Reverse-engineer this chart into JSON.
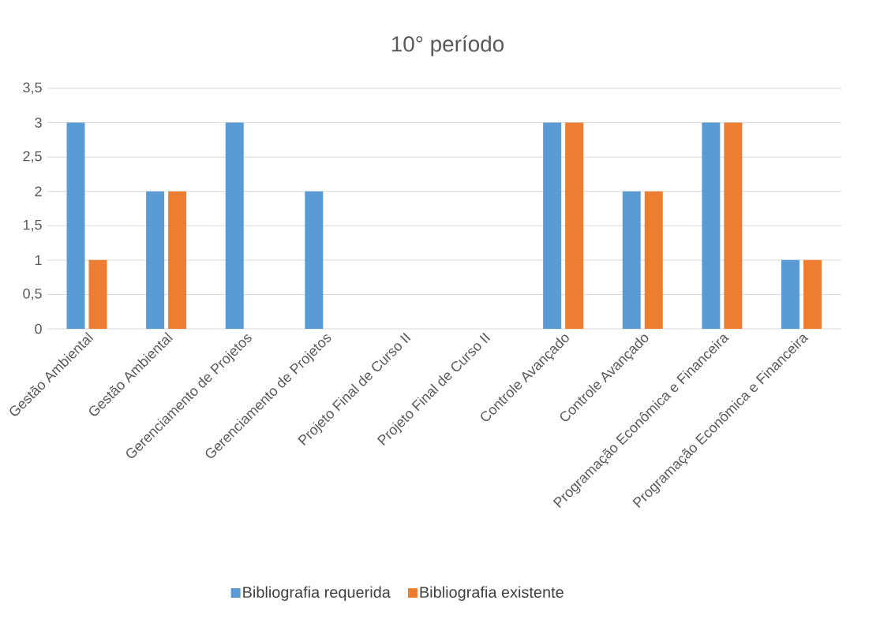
{
  "chart_data": {
    "type": "bar",
    "title": "10° período",
    "categories": [
      "Gestão Ambiental",
      "Gestão Ambiental",
      "Gerenciamento de Projetos",
      "Gerenciamento de Projetos",
      "Projeto Final de Curso II",
      "Projeto Final de Curso II",
      "Controle Avançado",
      "Controle Avançado",
      "Programação Econômica e Financeira",
      "Programação Econômica e Financeira"
    ],
    "series": [
      {
        "name": "Bibliografia requerida",
        "color": "#5b9bd5",
        "values": [
          3,
          2,
          3,
          2,
          0,
          0,
          3,
          2,
          3,
          1
        ]
      },
      {
        "name": "Bibliografia existente",
        "color": "#ed7d31",
        "values": [
          1,
          2,
          0,
          0,
          0,
          0,
          3,
          2,
          3,
          1
        ]
      }
    ],
    "ylim": [
      0,
      3.5
    ],
    "yticks": [
      0,
      {
        "value": 0.5,
        "label": "0,5"
      },
      1,
      {
        "value": 1.5,
        "label": "1,5"
      },
      2,
      {
        "value": 2.5,
        "label": "2,5"
      },
      3,
      {
        "value": 3.5,
        "label": "3,5"
      }
    ],
    "grid": "y",
    "legend": "bottom"
  }
}
